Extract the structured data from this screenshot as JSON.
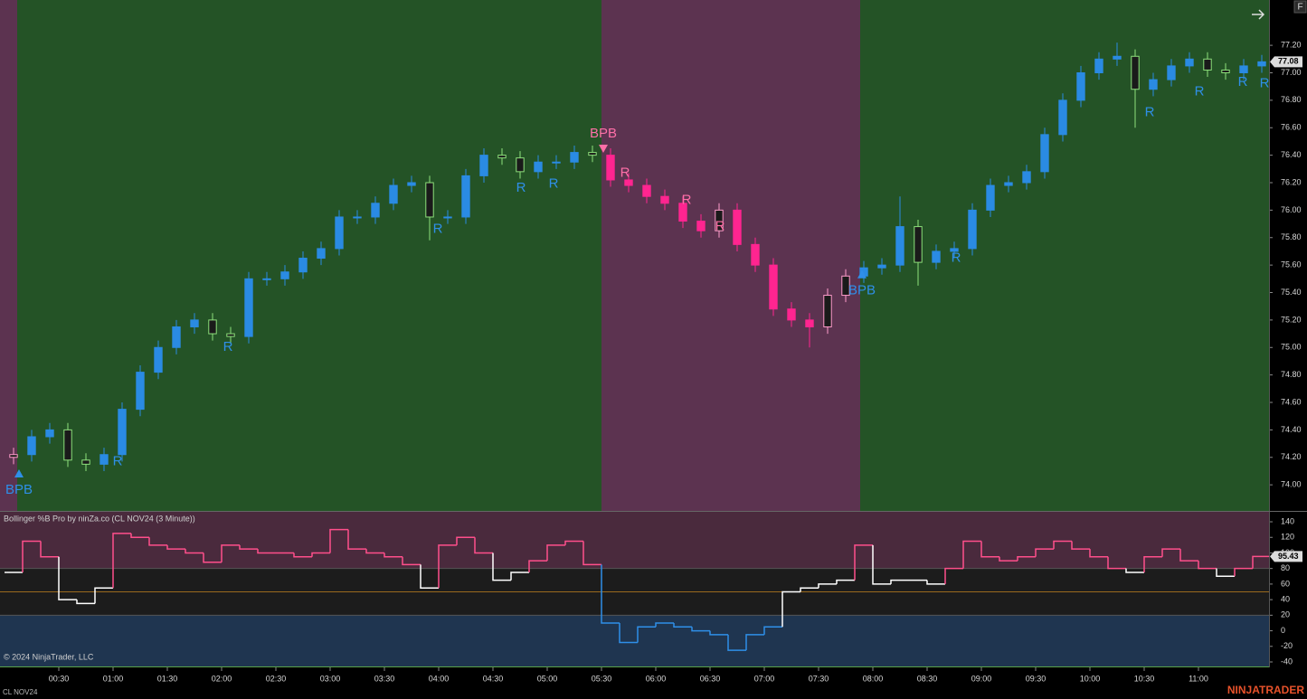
{
  "chart_data": [
    {
      "type": "candlestick",
      "xlim": [
        -2.5,
        699
      ],
      "ylim": [
        73.81,
        77.53
      ],
      "yticks": [
        {
          "value": 74,
          "label": "74.00"
        },
        {
          "value": 74.2,
          "label": "74.20"
        },
        {
          "value": 74.4,
          "label": "74.40"
        },
        {
          "value": 74.6,
          "label": "74.60"
        },
        {
          "value": 74.8,
          "label": "74.80"
        },
        {
          "value": 75,
          "label": "75.00"
        },
        {
          "value": 75.2,
          "label": "75.20"
        },
        {
          "value": 75.4,
          "label": "75.40"
        },
        {
          "value": 75.6,
          "label": "75.60"
        },
        {
          "value": 75.8,
          "label": "75.80"
        },
        {
          "value": 76,
          "label": "76.00"
        },
        {
          "value": 76.2,
          "label": "76.20"
        },
        {
          "value": 76.4,
          "label": "76.40"
        },
        {
          "value": 76.6,
          "label": "76.60"
        },
        {
          "value": 76.8,
          "label": "76.80"
        },
        {
          "value": 77,
          "label": "77.00"
        },
        {
          "value": 77.2,
          "label": "77.20"
        }
      ],
      "x": [
        5,
        15,
        25,
        35,
        45,
        55,
        65,
        75,
        85,
        95,
        105,
        115,
        125,
        135,
        145,
        155,
        165,
        175,
        185,
        195,
        205,
        215,
        225,
        235,
        245,
        255,
        265,
        275,
        285,
        295,
        305,
        315,
        325,
        335,
        345,
        355,
        365,
        375,
        385,
        395,
        405,
        415,
        425,
        435,
        445,
        455,
        465,
        475,
        485,
        495,
        505,
        515,
        525,
        535,
        545,
        555,
        565,
        575,
        585,
        595,
        605,
        615,
        625,
        635,
        645,
        655,
        665,
        675,
        685,
        695
      ],
      "open": [
        74.2,
        74.22,
        74.35,
        74.4,
        74.18,
        74.15,
        74.22,
        74.55,
        74.82,
        75,
        75.15,
        75.2,
        75.1,
        75.08,
        75.5,
        75.5,
        75.55,
        75.65,
        75.72,
        75.95,
        75.95,
        76.05,
        76.18,
        76.2,
        75.95,
        75.95,
        76.25,
        76.4,
        76.38,
        76.28,
        76.35,
        76.35,
        76.42,
        76.4,
        76.22,
        76.18,
        76.1,
        76.05,
        75.92,
        75.85,
        76,
        75.75,
        75.6,
        75.28,
        75.2,
        75.15,
        75.38,
        75.52,
        75.58,
        75.6,
        75.88,
        75.62,
        75.7,
        75.72,
        76,
        76.18,
        76.2,
        76.28,
        76.55,
        76.8,
        77,
        77.1,
        77.12,
        76.88,
        76.95,
        77.05,
        77.1,
        77.02,
        77,
        77.05
      ],
      "high": [
        74.27,
        74.4,
        74.45,
        74.45,
        74.23,
        74.27,
        74.6,
        74.87,
        75.05,
        75.2,
        75.25,
        75.25,
        75.15,
        75.55,
        75.55,
        75.6,
        75.7,
        75.77,
        76,
        76,
        76.1,
        76.23,
        76.25,
        76.25,
        76,
        76.3,
        76.45,
        76.45,
        76.43,
        76.4,
        76.4,
        76.47,
        76.47,
        76.45,
        76.27,
        76.23,
        76.15,
        76.1,
        75.97,
        76.05,
        76.05,
        75.8,
        75.65,
        75.33,
        75.25,
        75.43,
        75.57,
        75.63,
        75.65,
        76.1,
        75.93,
        75.75,
        75.77,
        76.05,
        76.23,
        76.25,
        76.33,
        76.6,
        76.85,
        77.05,
        77.15,
        77.22,
        77.17,
        77,
        77.1,
        77.15,
        77.15,
        77.07,
        77.1,
        77.13
      ],
      "low": [
        74.15,
        74.17,
        74.3,
        74.13,
        74.1,
        74.1,
        74.17,
        74.5,
        74.77,
        74.95,
        75.1,
        75.05,
        75.03,
        75.03,
        75.45,
        75.45,
        75.5,
        75.6,
        75.67,
        75.9,
        75.9,
        76,
        76.13,
        75.78,
        75.9,
        75.9,
        76.2,
        76.33,
        76.23,
        76.23,
        76.3,
        76.3,
        76.35,
        76.17,
        76.13,
        76.05,
        76,
        75.87,
        75.8,
        75.8,
        75.7,
        75.55,
        75.23,
        75.15,
        75,
        75.1,
        75.33,
        75.47,
        75.53,
        75.55,
        75.45,
        75.57,
        75.65,
        75.67,
        75.95,
        76.13,
        76.15,
        76.23,
        76.5,
        76.75,
        76.95,
        77.05,
        76.6,
        76.83,
        76.9,
        77,
        76.97,
        76.95,
        76.95,
        77
      ],
      "close": [
        74.22,
        74.35,
        74.4,
        74.18,
        74.15,
        74.22,
        74.55,
        74.82,
        75,
        75.15,
        75.2,
        75.1,
        75.08,
        75.5,
        75.5,
        75.55,
        75.65,
        75.72,
        75.95,
        75.95,
        76.05,
        76.18,
        76.2,
        75.95,
        75.95,
        76.25,
        76.4,
        76.38,
        76.28,
        76.35,
        76.35,
        76.42,
        76.4,
        76.22,
        76.18,
        76.1,
        76.05,
        75.92,
        75.85,
        76,
        75.75,
        75.6,
        75.28,
        75.2,
        75.15,
        75.38,
        75.52,
        75.58,
        75.6,
        75.88,
        75.62,
        75.7,
        75.72,
        76,
        76.18,
        76.2,
        76.28,
        76.55,
        76.8,
        77,
        77.1,
        77.12,
        76.88,
        76.95,
        77.05,
        77.1,
        77.02,
        77,
        77.05,
        77.08
      ],
      "colors": {
        "bull_up": "#2a8be3",
        "bull_down": "#8ee07c",
        "bear_down": "#ff2590",
        "bear_up": "#ff9ccb"
      },
      "bands": [
        {
          "from": -2.5,
          "to": 7,
          "regime": "bear",
          "color": "#5c3350"
        },
        {
          "from": 7,
          "to": 330,
          "regime": "bull",
          "color": "#245326"
        },
        {
          "from": 330,
          "to": 473,
          "regime": "bear",
          "color": "#5c3350"
        },
        {
          "from": 473,
          "to": 699,
          "regime": "bull",
          "color": "#245326"
        }
      ],
      "annotations": [
        {
          "text": "BPB",
          "x": 8,
          "y": 74.08,
          "marker": "up",
          "color": "#2f8fe8"
        },
        {
          "text": "R",
          "x": 62.5,
          "y": 74.17,
          "color": "#2f8fe8"
        },
        {
          "text": "R",
          "x": 123.5,
          "y": 75,
          "color": "#2f8fe8"
        },
        {
          "text": "R",
          "x": 239.5,
          "y": 75.86,
          "color": "#2f8fe8"
        },
        {
          "text": "R",
          "x": 285.5,
          "y": 76.16,
          "color": "#2f8fe8"
        },
        {
          "text": "R",
          "x": 303.5,
          "y": 76.19,
          "color": "#2f8fe8"
        },
        {
          "text": "BPB",
          "x": 331,
          "y": 76.45,
          "marker": "down",
          "color": "#ff6fa8"
        },
        {
          "text": "R",
          "x": 343,
          "y": 76.27,
          "color": "#ff6fa8"
        },
        {
          "text": "R",
          "x": 377,
          "y": 76.07,
          "color": "#ff6fa8"
        },
        {
          "text": "R",
          "x": 395.5,
          "y": 75.88,
          "color": "#ff6fa8"
        },
        {
          "text": "BPB",
          "x": 474,
          "y": 75.53,
          "marker": "up",
          "color": "#2f8fe8"
        },
        {
          "text": "R",
          "x": 526,
          "y": 75.65,
          "color": "#2f8fe8"
        },
        {
          "text": "R",
          "x": 633,
          "y": 76.71,
          "color": "#2f8fe8"
        },
        {
          "text": "R",
          "x": 660.5,
          "y": 76.86,
          "color": "#2f8fe8"
        },
        {
          "text": "R",
          "x": 684.5,
          "y": 76.93,
          "color": "#2f8fe8"
        },
        {
          "text": "R",
          "x": 696.5,
          "y": 76.92,
          "color": "#2f8fe8"
        }
      ]
    },
    {
      "type": "step",
      "title": "Bollinger %B Pro by ninZa.co (CL NOV24 (3 Minute))",
      "xlim": [
        -2.5,
        699
      ],
      "ylim": [
        -45.8,
        152.8
      ],
      "yticks": [
        -40,
        -20,
        0,
        20,
        40,
        60,
        80,
        100,
        120,
        140
      ],
      "xticks": [
        {
          "value": 30,
          "label": "00:30"
        },
        {
          "value": 60,
          "label": "01:00"
        },
        {
          "value": 90,
          "label": "01:30"
        },
        {
          "value": 120,
          "label": "02:00"
        },
        {
          "value": 150,
          "label": "02:30"
        },
        {
          "value": 180,
          "label": "03:00"
        },
        {
          "value": 210,
          "label": "03:30"
        },
        {
          "value": 240,
          "label": "04:00"
        },
        {
          "value": 270,
          "label": "04:30"
        },
        {
          "value": 300,
          "label": "05:00"
        },
        {
          "value": 330,
          "label": "05:30"
        },
        {
          "value": 360,
          "label": "06:00"
        },
        {
          "value": 390,
          "label": "06:30"
        },
        {
          "value": 420,
          "label": "07:00"
        },
        {
          "value": 450,
          "label": "07:30"
        },
        {
          "value": 480,
          "label": "08:00"
        },
        {
          "value": 510,
          "label": "08:30"
        },
        {
          "value": 540,
          "label": "09:00"
        },
        {
          "value": 570,
          "label": "09:30"
        },
        {
          "value": 600,
          "label": "10:00"
        },
        {
          "value": 630,
          "label": "10:30"
        },
        {
          "value": 660,
          "label": "11:00"
        }
      ],
      "x": [
        5,
        15,
        25,
        35,
        45,
        55,
        65,
        75,
        85,
        95,
        105,
        115,
        125,
        135,
        145,
        155,
        165,
        175,
        185,
        195,
        205,
        215,
        225,
        235,
        245,
        255,
        265,
        275,
        285,
        295,
        305,
        315,
        325,
        335,
        345,
        355,
        365,
        375,
        385,
        395,
        405,
        415,
        425,
        435,
        445,
        455,
        465,
        475,
        485,
        495,
        505,
        515,
        525,
        535,
        545,
        555,
        565,
        575,
        585,
        595,
        605,
        615,
        625,
        635,
        645,
        655,
        665,
        675,
        685,
        695
      ],
      "values": [
        75,
        115,
        95,
        40,
        35,
        55,
        125,
        120,
        110,
        105,
        100,
        88,
        110,
        105,
        100,
        100,
        95,
        100,
        130,
        105,
        100,
        95,
        85,
        55,
        110,
        120,
        100,
        65,
        75,
        90,
        110,
        115,
        85,
        10,
        -15,
        5,
        10,
        5,
        0,
        -5,
        -25,
        -5,
        5,
        50,
        55,
        60,
        65,
        110,
        60,
        65,
        65,
        60,
        80,
        115,
        95,
        90,
        95,
        105,
        115,
        105,
        95,
        80,
        75,
        95,
        105,
        90,
        80,
        70,
        80,
        95.43
      ],
      "zones": [
        {
          "from": 80,
          "to": 152.8,
          "color": "#4a2a3d",
          "line": "#ff4f8b"
        },
        {
          "from": 20,
          "to": -45.8,
          "color": "#1f3550",
          "line": "#2f8fe8"
        }
      ],
      "middle_color": "#1c1c1c",
      "line_color": "#ffffff",
      "levels": [
        {
          "value": 80,
          "color": "#555555"
        },
        {
          "value": 50,
          "color": "#9a6a1e"
        },
        {
          "value": 20,
          "color": "#555555"
        }
      ]
    }
  ],
  "ui": {
    "copyright": "© 2024 NinjaTrader, LLC",
    "instrument": "CL NOV24",
    "brand": "NINJATRADER",
    "button": "F"
  }
}
